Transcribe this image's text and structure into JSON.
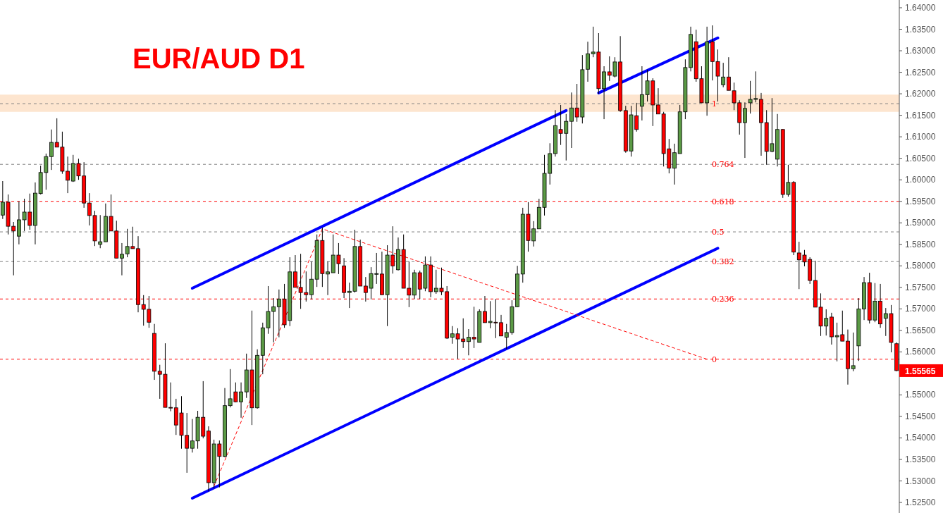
{
  "chart_data": {
    "type": "candlestick",
    "title": "EUR/AUD D1",
    "categories": [
      null,
      null,
      null,
      null,
      null,
      null,
      null,
      null,
      null,
      null,
      null,
      null,
      null,
      null,
      null,
      null,
      null,
      null,
      null,
      null,
      null,
      null,
      null,
      null,
      null,
      null,
      null,
      null,
      null,
      null,
      null,
      null,
      null,
      null,
      null,
      null,
      null,
      null,
      null,
      null,
      null,
      null,
      null,
      null,
      null,
      null,
      null,
      null,
      null,
      null,
      null,
      null,
      null,
      null,
      null,
      null,
      null,
      null,
      null,
      null,
      null,
      null,
      null,
      null,
      null,
      null,
      null,
      null,
      null,
      null,
      null,
      null,
      null,
      null,
      null,
      null,
      null,
      null,
      null,
      null,
      null,
      null,
      null,
      null,
      null,
      null,
      null,
      null,
      null,
      null,
      null,
      null,
      null,
      null,
      null,
      null,
      null,
      null,
      null,
      null,
      null,
      null,
      null,
      null,
      null,
      null,
      null,
      null,
      null,
      null,
      null,
      null,
      null,
      null,
      null,
      null,
      null,
      null,
      null,
      null,
      null,
      null,
      null,
      null,
      null,
      null,
      null,
      null,
      null,
      null,
      null,
      null,
      null,
      null,
      null,
      null,
      null,
      null,
      null,
      null,
      null,
      null,
      null,
      null,
      null,
      null,
      null,
      null,
      null,
      null,
      null,
      null,
      null,
      null,
      null,
      null,
      null,
      null,
      null,
      null,
      null,
      null,
      null,
      null,
      null,
      null
    ],
    "colors": [
      "#5b9a45",
      "#ff0000",
      "#ff0000",
      "#5b9a45",
      "#5b9a45",
      "#ff0000",
      "#5b9a45",
      "#5b9a45",
      "#5b9a45",
      "#5b9a45",
      "#ff0000",
      "#ff0000",
      "#ff0000",
      "#5b9a45",
      "#ff0000",
      "#ff0000",
      "#ff0000",
      "#ff0000",
      "#5b9a45",
      "#5b9a45",
      "#ff0000",
      "#ff0000",
      "#5b9a45",
      "#5b9a45",
      "#ff0000",
      "#ff0000",
      "#ff0000",
      "#ff0000",
      "#ff0000",
      "#ff0000",
      "#ff0000",
      "#ff0000",
      "#ff0000",
      "#ff0000",
      "#ff0000",
      "#5b9a45",
      "#5b9a45",
      "#ff0000",
      "#ff0000",
      "#5b9a45",
      "#ff0000",
      "#5b9a45",
      "#5b9a45",
      "#ff0000",
      "#5b9a45",
      "#5b9a45",
      "#ff0000",
      "#5b9a45",
      "#5b9a45",
      "#5b9a45",
      "#5b9a45",
      "#5b9a45",
      "#ff0000",
      "#5b9a45",
      "#ff0000",
      "#ff0000",
      "#ff0000",
      "#5b9a45",
      "#5b9a45",
      "#ff0000",
      "#5b9a45",
      "#5b9a45",
      "#ff0000",
      "#ff0000",
      "#5b9a45",
      "#5b9a45",
      "#ff0000",
      "#ff0000",
      "#5b9a45",
      "#5b9a45",
      "#ff0000",
      "#5b9a45",
      "#ff0000",
      "#5b9a45",
      "#ff0000",
      "#ff0000",
      "#5b9a45",
      "#ff0000",
      "#5b9a45",
      "#ff0000",
      "#5b9a45",
      "#ff0000",
      "#ff0000",
      "#5b9a45",
      "#ff0000",
      "#ff0000",
      "#5b9a45",
      "#ff0000",
      "#5b9a45",
      "#ff0000",
      "#5b9a45",
      "#ff0000",
      "#ff0000",
      "#5b9a45",
      "#5b9a45",
      "#5b9a45",
      "#5b9a45",
      "#ff0000",
      "#5b9a45",
      "#5b9a45",
      "#5b9a45",
      "#5b9a45",
      "#5b9a45",
      "#ff0000",
      "#5b9a45",
      "#5b9a45",
      "#ff0000",
      "#5b9a45",
      "#5b9a45",
      "#5b9a45",
      "#ff0000",
      "#5b9a45",
      "#ff0000",
      "#5b9a45",
      "#ff0000",
      "#ff0000",
      "#5b9a45",
      "#ff0000",
      "#5b9a45",
      "#5b9a45",
      "#ff0000",
      "#ff0000",
      "#ff0000",
      "#ff0000",
      "#5b9a45",
      "#5b9a45",
      "#5b9a45",
      "#5b9a45",
      "#ff0000",
      "#ff0000",
      "#5b9a45",
      "#ff0000",
      "#ff0000",
      "#5b9a45",
      "#ff0000",
      "#ff0000",
      "#ff0000",
      "#5b9a45",
      "#5b9a45",
      "#5b9a45",
      "#ff0000",
      "#ff0000",
      "#5b9a45",
      "#5b9a45",
      "#ff0000",
      "#5b9a45",
      "#ff0000",
      "#ff0000",
      "#ff0000",
      "#ff0000",
      "#ff0000",
      "#ff0000",
      "#5b9a45",
      "#ff0000",
      "#5b9a45",
      "#ff0000",
      "#ff0000",
      "#5b9a45",
      "#5b9a45",
      "#5b9a45",
      "#ff0000",
      "#5b9a45",
      "#ff0000",
      "#5b9a45",
      "#ff0000",
      "#ff0000"
    ],
    "ohlc": [
      [
        1.5918,
        1.5997,
        1.5909,
        1.5948
      ],
      [
        1.5948,
        1.5966,
        1.5873,
        1.5892
      ],
      [
        1.5892,
        1.5902,
        1.5778,
        1.5881
      ],
      [
        1.5869,
        1.595,
        1.585,
        1.5907
      ],
      [
        1.5907,
        1.5956,
        1.5881,
        1.5925
      ],
      [
        1.5925,
        1.5968,
        1.5884,
        1.5894
      ],
      [
        1.5894,
        1.5994,
        1.585,
        1.5969
      ],
      [
        1.5968,
        1.6033,
        1.5966,
        1.6017
      ],
      [
        1.6017,
        1.6061,
        1.5977,
        1.6054
      ],
      [
        1.6054,
        1.6117,
        1.6023,
        1.6087
      ],
      [
        1.6087,
        1.6143,
        1.6076,
        1.6076
      ],
      [
        1.6076,
        1.6112,
        1.6014,
        1.602
      ],
      [
        1.602,
        1.6054,
        1.5969,
        1.5999
      ],
      [
        1.5997,
        1.6058,
        1.5995,
        1.6038
      ],
      [
        1.6038,
        1.6049,
        1.6,
        1.6009
      ],
      [
        1.6009,
        1.6041,
        1.5935,
        1.5946
      ],
      [
        1.5946,
        1.5969,
        1.5894,
        1.5917
      ],
      [
        1.5917,
        1.5928,
        1.5846,
        1.5858
      ],
      [
        1.585,
        1.5918,
        1.5841,
        1.5856
      ],
      [
        1.5856,
        1.5945,
        1.5856,
        1.5915
      ],
      [
        1.5915,
        1.5966,
        1.5881,
        1.5881
      ],
      [
        1.5881,
        1.5905,
        1.5818,
        1.5818
      ],
      [
        1.5818,
        1.5853,
        1.5778,
        1.5827
      ],
      [
        1.5828,
        1.5886,
        1.582,
        1.5845
      ],
      [
        1.5845,
        1.5891,
        1.584,
        1.584
      ],
      [
        1.584,
        1.5869,
        1.5692,
        1.571
      ],
      [
        1.571,
        1.5732,
        1.5661,
        1.5699
      ],
      [
        1.5699,
        1.573,
        1.5656,
        1.5669
      ],
      [
        1.5643,
        1.5665,
        1.5535,
        1.5555
      ],
      [
        1.5555,
        1.557,
        1.5491,
        1.5548
      ],
      [
        1.5548,
        1.562,
        1.5471,
        1.5471
      ],
      [
        1.5471,
        1.5529,
        1.5462,
        1.547
      ],
      [
        1.547,
        1.5491,
        1.5407,
        1.543
      ],
      [
        1.5458,
        1.5497,
        1.5375,
        1.5406
      ],
      [
        1.5406,
        1.5458,
        1.5319,
        1.5376
      ],
      [
        1.5376,
        1.5444,
        1.5366,
        1.5393
      ],
      [
        1.5393,
        1.5463,
        1.5375,
        1.5448
      ],
      [
        1.5448,
        1.5532,
        1.5399,
        1.5404
      ],
      [
        1.5416,
        1.5427,
        1.5276,
        1.5296
      ],
      [
        1.5296,
        1.5396,
        1.5283,
        1.5386
      ],
      [
        1.5386,
        1.5394,
        1.5285,
        1.5357
      ],
      [
        1.5357,
        1.5516,
        1.5355,
        1.5475
      ],
      [
        1.5475,
        1.556,
        1.5471,
        1.5491
      ],
      [
        1.5507,
        1.5529,
        1.5483,
        1.5484
      ],
      [
        1.5484,
        1.5529,
        1.5447,
        1.5507
      ],
      [
        1.5507,
        1.5596,
        1.5493,
        1.5558
      ],
      [
        1.5558,
        1.5696,
        1.543,
        1.547
      ],
      [
        1.547,
        1.5606,
        1.5468,
        1.5592
      ],
      [
        1.5592,
        1.5668,
        1.5548,
        1.5656
      ],
      [
        1.5656,
        1.5753,
        1.5642,
        1.5694
      ],
      [
        1.5694,
        1.5725,
        1.5622,
        1.5705
      ],
      [
        1.5705,
        1.5745,
        1.5634,
        1.5723
      ],
      [
        1.5723,
        1.5758,
        1.5656,
        1.5663
      ],
      [
        1.5673,
        1.582,
        1.566,
        1.5786
      ],
      [
        1.5786,
        1.5825,
        1.575,
        1.575
      ],
      [
        1.575,
        1.5828,
        1.57,
        1.5738
      ],
      [
        1.5738,
        1.5787,
        1.5717,
        1.5733
      ],
      [
        1.5733,
        1.581,
        1.5722,
        1.5769
      ],
      [
        1.5769,
        1.5873,
        1.5751,
        1.5859
      ],
      [
        1.5859,
        1.5889,
        1.5751,
        1.5782
      ],
      [
        1.5781,
        1.581,
        1.5732,
        1.5786
      ],
      [
        1.5784,
        1.5873,
        1.5784,
        1.5825
      ],
      [
        1.5825,
        1.5853,
        1.5781,
        1.5805
      ],
      [
        1.58,
        1.5818,
        1.5725,
        1.5738
      ],
      [
        1.5738,
        1.5761,
        1.5702,
        1.5741
      ],
      [
        1.5741,
        1.5884,
        1.5738,
        1.5845
      ],
      [
        1.5845,
        1.5861,
        1.5753,
        1.5753
      ],
      [
        1.5753,
        1.5774,
        1.5717,
        1.5738
      ],
      [
        1.5748,
        1.5797,
        1.5722,
        1.5782
      ],
      [
        1.5781,
        1.583,
        1.5758,
        1.5782
      ],
      [
        1.5781,
        1.5833,
        1.5732,
        1.5733
      ],
      [
        1.5733,
        1.5848,
        1.566,
        1.5825
      ],
      [
        1.5825,
        1.5892,
        1.5782,
        1.58
      ],
      [
        1.5791,
        1.5866,
        1.5789,
        1.5838
      ],
      [
        1.5838,
        1.5873,
        1.5748,
        1.5748
      ],
      [
        1.5748,
        1.581,
        1.5704,
        1.5732
      ],
      [
        1.5732,
        1.5791,
        1.5723,
        1.5784
      ],
      [
        1.5784,
        1.5789,
        1.5723,
        1.5746
      ],
      [
        1.5748,
        1.5822,
        1.5741,
        1.5802
      ],
      [
        1.5802,
        1.5822,
        1.5727,
        1.574
      ],
      [
        1.574,
        1.5791,
        1.5735,
        1.5748
      ],
      [
        1.5748,
        1.5796,
        1.5732,
        1.574
      ],
      [
        1.574,
        1.5753,
        1.563,
        1.5632
      ],
      [
        1.5634,
        1.566,
        1.5619,
        1.5642
      ],
      [
        1.5642,
        1.5655,
        1.5584,
        1.563
      ],
      [
        1.563,
        1.5678,
        1.5609,
        1.5624
      ],
      [
        1.5624,
        1.5653,
        1.5592,
        1.5634
      ],
      [
        1.5634,
        1.5705,
        1.5609,
        1.563
      ],
      [
        1.5622,
        1.5699,
        1.5622,
        1.5694
      ],
      [
        1.5694,
        1.573,
        1.5668,
        1.5668
      ],
      [
        1.5668,
        1.5718,
        1.5655,
        1.5671
      ],
      [
        1.5669,
        1.5723,
        1.5632,
        1.5668
      ],
      [
        1.5668,
        1.5686,
        1.5637,
        1.5637
      ],
      [
        1.5634,
        1.5665,
        1.5607,
        1.5645
      ],
      [
        1.5645,
        1.572,
        1.564,
        1.5705
      ],
      [
        1.5705,
        1.58,
        1.5704,
        1.5781
      ],
      [
        1.5781,
        1.5935,
        1.5761,
        1.592
      ],
      [
        1.592,
        1.5948,
        1.5833,
        1.5859
      ],
      [
        1.5858,
        1.5904,
        1.5845,
        1.5886
      ],
      [
        1.5886,
        1.5956,
        1.5886,
        1.5936
      ],
      [
        1.5936,
        1.6058,
        1.5917,
        1.6015
      ],
      [
        1.6015,
        1.6085,
        1.5989,
        1.6061
      ],
      [
        1.6061,
        1.6162,
        1.6054,
        1.6126
      ],
      [
        1.6117,
        1.6174,
        1.6081,
        1.6108
      ],
      [
        1.6108,
        1.6153,
        1.6045,
        1.6136
      ],
      [
        1.6136,
        1.6203,
        1.6074,
        1.6167
      ],
      [
        1.6167,
        1.6223,
        1.6135,
        1.6146
      ],
      [
        1.6146,
        1.629,
        1.6131,
        1.6256
      ],
      [
        1.6257,
        1.6321,
        1.6228,
        1.6293
      ],
      [
        1.6293,
        1.6356,
        1.6285,
        1.6297
      ],
      [
        1.6297,
        1.6341,
        1.62,
        1.6212
      ],
      [
        1.6212,
        1.6264,
        1.6141,
        1.6251
      ],
      [
        1.6251,
        1.6287,
        1.623,
        1.6243
      ],
      [
        1.6241,
        1.6285,
        1.6238,
        1.6274
      ],
      [
        1.6274,
        1.6334,
        1.6158,
        1.6161
      ],
      [
        1.6161,
        1.6172,
        1.6063,
        1.6067
      ],
      [
        1.6067,
        1.6172,
        1.6054,
        1.6151
      ],
      [
        1.6149,
        1.6179,
        1.6112,
        1.6117
      ],
      [
        1.6171,
        1.6264,
        1.6138,
        1.6198
      ],
      [
        1.6198,
        1.6256,
        1.6182,
        1.623
      ],
      [
        1.623,
        1.6236,
        1.6125,
        1.6174
      ],
      [
        1.6174,
        1.6213,
        1.6153,
        1.6153
      ],
      [
        1.6153,
        1.6158,
        1.6031,
        1.6061
      ],
      [
        1.6072,
        1.6095,
        1.6015,
        1.6027
      ],
      [
        1.6027,
        1.6084,
        1.5989,
        1.6063
      ],
      [
        1.6061,
        1.6174,
        1.6061,
        1.6158
      ],
      [
        1.6158,
        1.628,
        1.6141,
        1.6261
      ],
      [
        1.6261,
        1.6356,
        1.6252,
        1.6338
      ],
      [
        1.6321,
        1.6349,
        1.6228,
        1.6235
      ],
      [
        1.6235,
        1.6264,
        1.6179,
        1.6179
      ],
      [
        1.6179,
        1.6356,
        1.6149,
        1.6321
      ],
      [
        1.6321,
        1.6359,
        1.6231,
        1.6275
      ],
      [
        1.6275,
        1.6303,
        1.6182,
        1.6241
      ],
      [
        1.6221,
        1.6272,
        1.6215,
        1.6239
      ],
      [
        1.6239,
        1.6285,
        1.6208,
        1.6208
      ],
      [
        1.6207,
        1.6226,
        1.6162,
        1.6179
      ],
      [
        1.6179,
        1.6185,
        1.6105,
        1.6133
      ],
      [
        1.6133,
        1.618,
        1.6051,
        1.6166
      ],
      [
        1.6179,
        1.623,
        1.6154,
        1.6187
      ],
      [
        1.6187,
        1.6252,
        1.618,
        1.6189
      ],
      [
        1.6187,
        1.6202,
        1.6056,
        1.6133
      ],
      [
        1.6133,
        1.6162,
        1.6035,
        1.6066
      ],
      [
        1.6066,
        1.619,
        1.6064,
        1.6084
      ],
      [
        1.6048,
        1.6153,
        1.6031,
        1.6117
      ],
      [
        1.6117,
        1.6118,
        1.5958,
        1.5966
      ],
      [
        1.5966,
        1.6035,
        1.5961,
        1.5994
      ],
      [
        1.5994,
        1.5997,
        1.5825,
        1.5832
      ],
      [
        1.583,
        1.5856,
        1.5746,
        1.5814
      ],
      [
        1.5825,
        1.5837,
        1.5799,
        1.5809
      ],
      [
        1.5815,
        1.582,
        1.5758,
        1.5766
      ],
      [
        1.5766,
        1.5812,
        1.5704,
        1.5704
      ],
      [
        1.5704,
        1.5736,
        1.5637,
        1.566
      ],
      [
        1.566,
        1.5699,
        1.5638,
        1.5678
      ],
      [
        1.5681,
        1.5691,
        1.5617,
        1.5635
      ],
      [
        1.5635,
        1.5668,
        1.5578,
        1.5638
      ],
      [
        1.564,
        1.5696,
        1.5625,
        1.5625
      ],
      [
        1.5625,
        1.5652,
        1.5524,
        1.5561
      ],
      [
        1.5561,
        1.5645,
        1.5555,
        1.5568
      ],
      [
        1.5614,
        1.5725,
        1.5579,
        1.57
      ],
      [
        1.57,
        1.5774,
        1.5674,
        1.5761
      ],
      [
        1.5761,
        1.5784,
        1.5666,
        1.5674
      ],
      [
        1.5674,
        1.576,
        1.5669,
        1.5718
      ],
      [
        1.5718,
        1.5758,
        1.5656,
        1.5665
      ],
      [
        1.5678,
        1.5702,
        1.5637,
        1.5689
      ],
      [
        1.5689,
        1.5709,
        1.5599,
        1.5622
      ],
      [
        1.5619,
        1.5622,
        1.5555,
        1.55565
      ]
    ],
    "series": [
      {
        "type": "line",
        "color": "#0000ff",
        "values": [
          null,
          null,
          null,
          null,
          null,
          null,
          null,
          null,
          null,
          null,
          null,
          null,
          null,
          null,
          null,
          null,
          null,
          null,
          null,
          null,
          null,
          null,
          null,
          null,
          null,
          null,
          null,
          null,
          null,
          null,
          null,
          null,
          null,
          null,
          null,
          1.5748,
          null,
          null,
          null,
          null,
          null,
          null,
          null,
          null,
          null,
          null,
          null,
          null,
          null,
          null,
          null,
          null,
          null,
          null,
          null,
          null,
          null,
          null,
          null,
          null,
          null,
          null,
          null,
          null,
          null,
          null,
          null,
          null,
          null,
          null,
          null,
          null,
          null,
          null,
          null,
          null,
          null,
          null,
          null,
          null,
          null,
          null,
          null,
          null,
          null,
          null,
          null,
          null,
          null,
          null,
          null,
          null,
          null,
          null,
          null,
          null,
          null,
          null,
          null,
          null,
          null,
          null,
          null,
          null,
          1.6161,
          null,
          null,
          null,
          null,
          null,
          null,
          null,
          null,
          null,
          null,
          null,
          null,
          null,
          null,
          null,
          null,
          null,
          null,
          null,
          null,
          null,
          null,
          null,
          null,
          null,
          null,
          null,
          null,
          null,
          null,
          null,
          null,
          null,
          null,
          null,
          null,
          null,
          null,
          null,
          null,
          null,
          null,
          null,
          null,
          null,
          null,
          null,
          null,
          null,
          null,
          null,
          null,
          null,
          null,
          null,
          null,
          null,
          null,
          null,
          null,
          null
        ]
      },
      {
        "type": "line",
        "color": "#0000ff",
        "values": [
          null,
          null,
          null,
          null,
          null,
          null,
          null,
          null,
          null,
          null,
          null,
          null,
          null,
          null,
          null,
          null,
          null,
          null,
          null,
          null,
          null,
          null,
          null,
          null,
          null,
          null,
          null,
          null,
          null,
          null,
          null,
          null,
          null,
          null,
          null,
          null,
          null,
          null,
          null,
          null,
          null,
          null,
          null,
          null,
          null,
          null,
          null,
          null,
          null,
          null,
          null,
          null,
          null,
          null,
          null,
          null,
          null,
          null,
          null,
          null,
          null,
          null,
          null,
          null,
          null,
          null,
          null,
          null,
          null,
          null,
          null,
          null,
          null,
          null,
          null,
          null,
          null,
          null,
          null,
          null,
          null,
          null,
          null,
          null,
          null,
          null,
          null,
          null,
          null,
          null,
          null,
          null,
          null,
          null,
          null,
          null,
          null,
          null,
          null,
          null,
          null,
          null,
          null,
          null,
          null,
          null,
          null,
          null,
          null,
          null,
          1.6202,
          null,
          null,
          null,
          null,
          null,
          null,
          null,
          null,
          null,
          null,
          null,
          null,
          null,
          null,
          null,
          null,
          null,
          null,
          null,
          null,
          null,
          1.633,
          null,
          null,
          null,
          null,
          null,
          null,
          null,
          null,
          null,
          null,
          null,
          null,
          null,
          null,
          null,
          null,
          null,
          null,
          null,
          null,
          null,
          null,
          null,
          null,
          null,
          null,
          null,
          null,
          null,
          null,
          null,
          null,
          null
        ]
      },
      {
        "type": "line",
        "color": "#0000ff",
        "values": [
          null,
          null,
          null,
          null,
          null,
          null,
          null,
          null,
          null,
          null,
          null,
          null,
          null,
          null,
          null,
          null,
          null,
          null,
          null,
          null,
          null,
          null,
          null,
          null,
          null,
          null,
          null,
          null,
          null,
          null,
          null,
          null,
          null,
          null,
          null,
          1.526,
          null,
          null,
          null,
          null,
          null,
          null,
          null,
          null,
          null,
          null,
          null,
          null,
          null,
          null,
          null,
          null,
          null,
          null,
          null,
          null,
          null,
          null,
          null,
          null,
          null,
          null,
          null,
          null,
          null,
          null,
          null,
          null,
          null,
          null,
          null,
          null,
          null,
          null,
          null,
          null,
          null,
          null,
          null,
          null,
          null,
          null,
          null,
          null,
          null,
          null,
          null,
          null,
          null,
          null,
          null,
          null,
          null,
          null,
          null,
          null,
          null,
          null,
          null,
          null,
          null,
          null,
          null,
          null,
          null,
          null,
          null,
          null,
          null,
          null,
          null,
          null,
          null,
          null,
          null,
          null,
          null,
          null,
          null,
          null,
          null,
          null,
          null,
          null,
          null,
          null,
          null,
          null,
          null,
          null,
          null,
          null,
          1.5841,
          null,
          null,
          null,
          null,
          null,
          null,
          null,
          null,
          null,
          null,
          null,
          null,
          null,
          null,
          null,
          null,
          null,
          null,
          null,
          null,
          null,
          null,
          null,
          null,
          null,
          null,
          null,
          null,
          null,
          null,
          null,
          null,
          null
        ]
      },
      {
        "type": "line",
        "color": "#ff0000",
        "line_style": "dashed",
        "values": [
          null,
          null,
          null,
          null,
          null,
          null,
          null,
          null,
          null,
          null,
          null,
          null,
          null,
          null,
          null,
          null,
          null,
          null,
          null,
          null,
          null,
          null,
          null,
          null,
          null,
          null,
          null,
          null,
          null,
          null,
          null,
          null,
          null,
          null,
          null,
          null,
          null,
          null,
          null,
          1.5288,
          null,
          null,
          null,
          null,
          null,
          null,
          null,
          null,
          null,
          null,
          null,
          null,
          null,
          null,
          null,
          null,
          null,
          null,
          null,
          1.5886,
          null,
          null,
          null,
          null,
          null,
          null,
          null,
          null,
          null,
          null,
          null,
          null,
          null,
          null,
          null,
          null,
          null,
          null,
          null,
          null,
          null,
          null,
          null,
          null,
          null,
          null,
          null,
          null,
          null,
          null,
          null,
          null,
          null,
          null,
          null,
          null,
          null,
          null,
          null,
          null,
          null,
          null,
          null,
          null,
          null,
          null,
          null,
          null,
          null,
          null,
          null,
          null,
          null,
          null,
          null,
          null,
          null,
          null,
          null,
          null,
          null,
          null,
          null,
          null,
          null,
          null,
          null,
          null,
          null,
          null,
          1.5583,
          null,
          null,
          null,
          null,
          null,
          null,
          null,
          null,
          null,
          null,
          null,
          null,
          null,
          null,
          null,
          null,
          null,
          null,
          null,
          null,
          null,
          null,
          null,
          null,
          null,
          null,
          null,
          null,
          null,
          null,
          null,
          null,
          null,
          null,
          null
        ]
      }
    ],
    "ref_lines": [
      {
        "axis": "y",
        "value": 1.6177,
        "color": "#808080",
        "line_style": "dashed"
      },
      {
        "axis": "y",
        "value": 1.6036,
        "color": "#808080",
        "line_style": "dashed"
      },
      {
        "axis": "y",
        "value": 1.595,
        "color": "#ff0000",
        "line_style": "dashed"
      },
      {
        "axis": "y",
        "value": 1.5879,
        "color": "#808080",
        "line_style": "dashed"
      },
      {
        "axis": "y",
        "value": 1.581,
        "color": "#808080",
        "line_style": "dashed"
      },
      {
        "axis": "y",
        "value": 1.5723,
        "color": "#ff0000",
        "line_style": "dashed"
      },
      {
        "axis": "y",
        "value": 1.5583,
        "color": "#ff0000",
        "line_style": "dashed"
      }
    ],
    "bands": [
      {
        "axis": "y",
        "from": 1.6158,
        "to": 1.6198,
        "color": "#fde5cf"
      }
    ],
    "annotations": [
      {
        "text": "1",
        "y": 1.6177
      },
      {
        "text": "0.764",
        "y": 1.6036
      },
      {
        "text": "0.618",
        "y": 1.595
      },
      {
        "text": "0.5",
        "y": 1.5879
      },
      {
        "text": "0.382",
        "y": 1.581
      },
      {
        "text": "0.236",
        "y": 1.5723
      },
      {
        "text": "0",
        "y": 1.5583
      },
      "1.55565"
    ],
    "ylim": [
      1.52255,
      1.6418
    ],
    "yticks": [
      {
        "value": 1.525,
        "label": "1.52500"
      },
      {
        "value": 1.53,
        "label": "1.53000"
      },
      {
        "value": 1.535,
        "label": "1.53500"
      },
      {
        "value": 1.54,
        "label": "1.54000"
      },
      {
        "value": 1.545,
        "label": "1.54500"
      },
      {
        "value": 1.55,
        "label": "1.55000"
      },
      {
        "value": 1.555,
        "label": null
      },
      {
        "value": 1.56,
        "label": "1.56000"
      },
      {
        "value": 1.565,
        "label": "1.56500"
      },
      {
        "value": 1.57,
        "label": "1.57000"
      },
      {
        "value": 1.575,
        "label": "1.57500"
      },
      {
        "value": 1.58,
        "label": "1.58000"
      },
      {
        "value": 1.585,
        "label": "1.58500"
      },
      {
        "value": 1.59,
        "label": "1.59000"
      },
      {
        "value": 1.595,
        "label": "1.59500"
      },
      {
        "value": 1.6,
        "label": "1.60000"
      },
      {
        "value": 1.605,
        "label": "1.60500"
      },
      {
        "value": 1.61,
        "label": "1.61000"
      },
      {
        "value": 1.615,
        "label": "1.61500"
      },
      {
        "value": 1.62,
        "label": "1.62000"
      },
      {
        "value": 1.625,
        "label": "1.62500"
      },
      {
        "value": 1.63,
        "label": "1.63000"
      },
      {
        "value": 1.635,
        "label": "1.63500"
      },
      {
        "value": 1.64,
        "label": "1.64000"
      }
    ],
    "tick_labels": "y"
  }
}
